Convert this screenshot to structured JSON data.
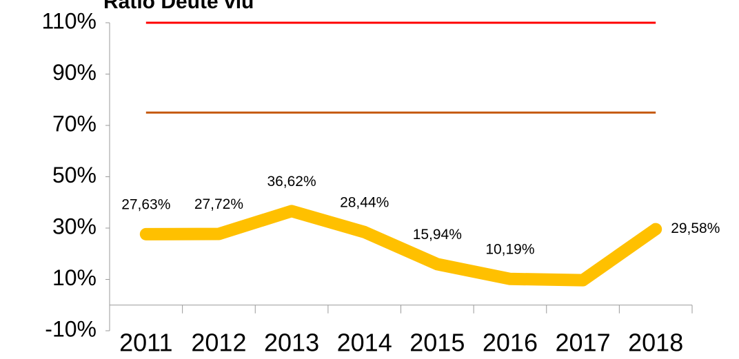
{
  "chart_data": {
    "type": "line",
    "title": "Ratio Deute viu",
    "categories": [
      "2011",
      "2012",
      "2013",
      "2014",
      "2015",
      "2016",
      "2017",
      "2018"
    ],
    "series": [
      {
        "color": "#ffc000",
        "values": [
          27.63,
          27.72,
          36.62,
          28.44,
          15.94,
          10.19,
          9.7,
          29.58
        ],
        "value_labels": [
          "27,63%",
          "27,72%",
          "36,62%",
          "28,44%",
          "15,94%",
          "10,19%",
          null,
          "29,58%"
        ]
      },
      {
        "color": "#c55a11",
        "values": [
          75,
          75,
          75,
          75,
          75,
          75,
          75,
          75
        ]
      },
      {
        "color": "#ff0000",
        "values": [
          110,
          110,
          110,
          110,
          110,
          110,
          110,
          110
        ]
      }
    ],
    "ylim": [
      -10,
      110
    ],
    "yticks": [
      {
        "value": -10,
        "label": "-10%"
      },
      {
        "value": 10,
        "label": "10%"
      },
      {
        "value": 30,
        "label": "30%"
      },
      {
        "value": 50,
        "label": "50%"
      },
      {
        "value": 70,
        "label": "70%"
      },
      {
        "value": 90,
        "label": "90%"
      },
      {
        "value": 110,
        "label": "110%"
      }
    ],
    "grid": false
  }
}
